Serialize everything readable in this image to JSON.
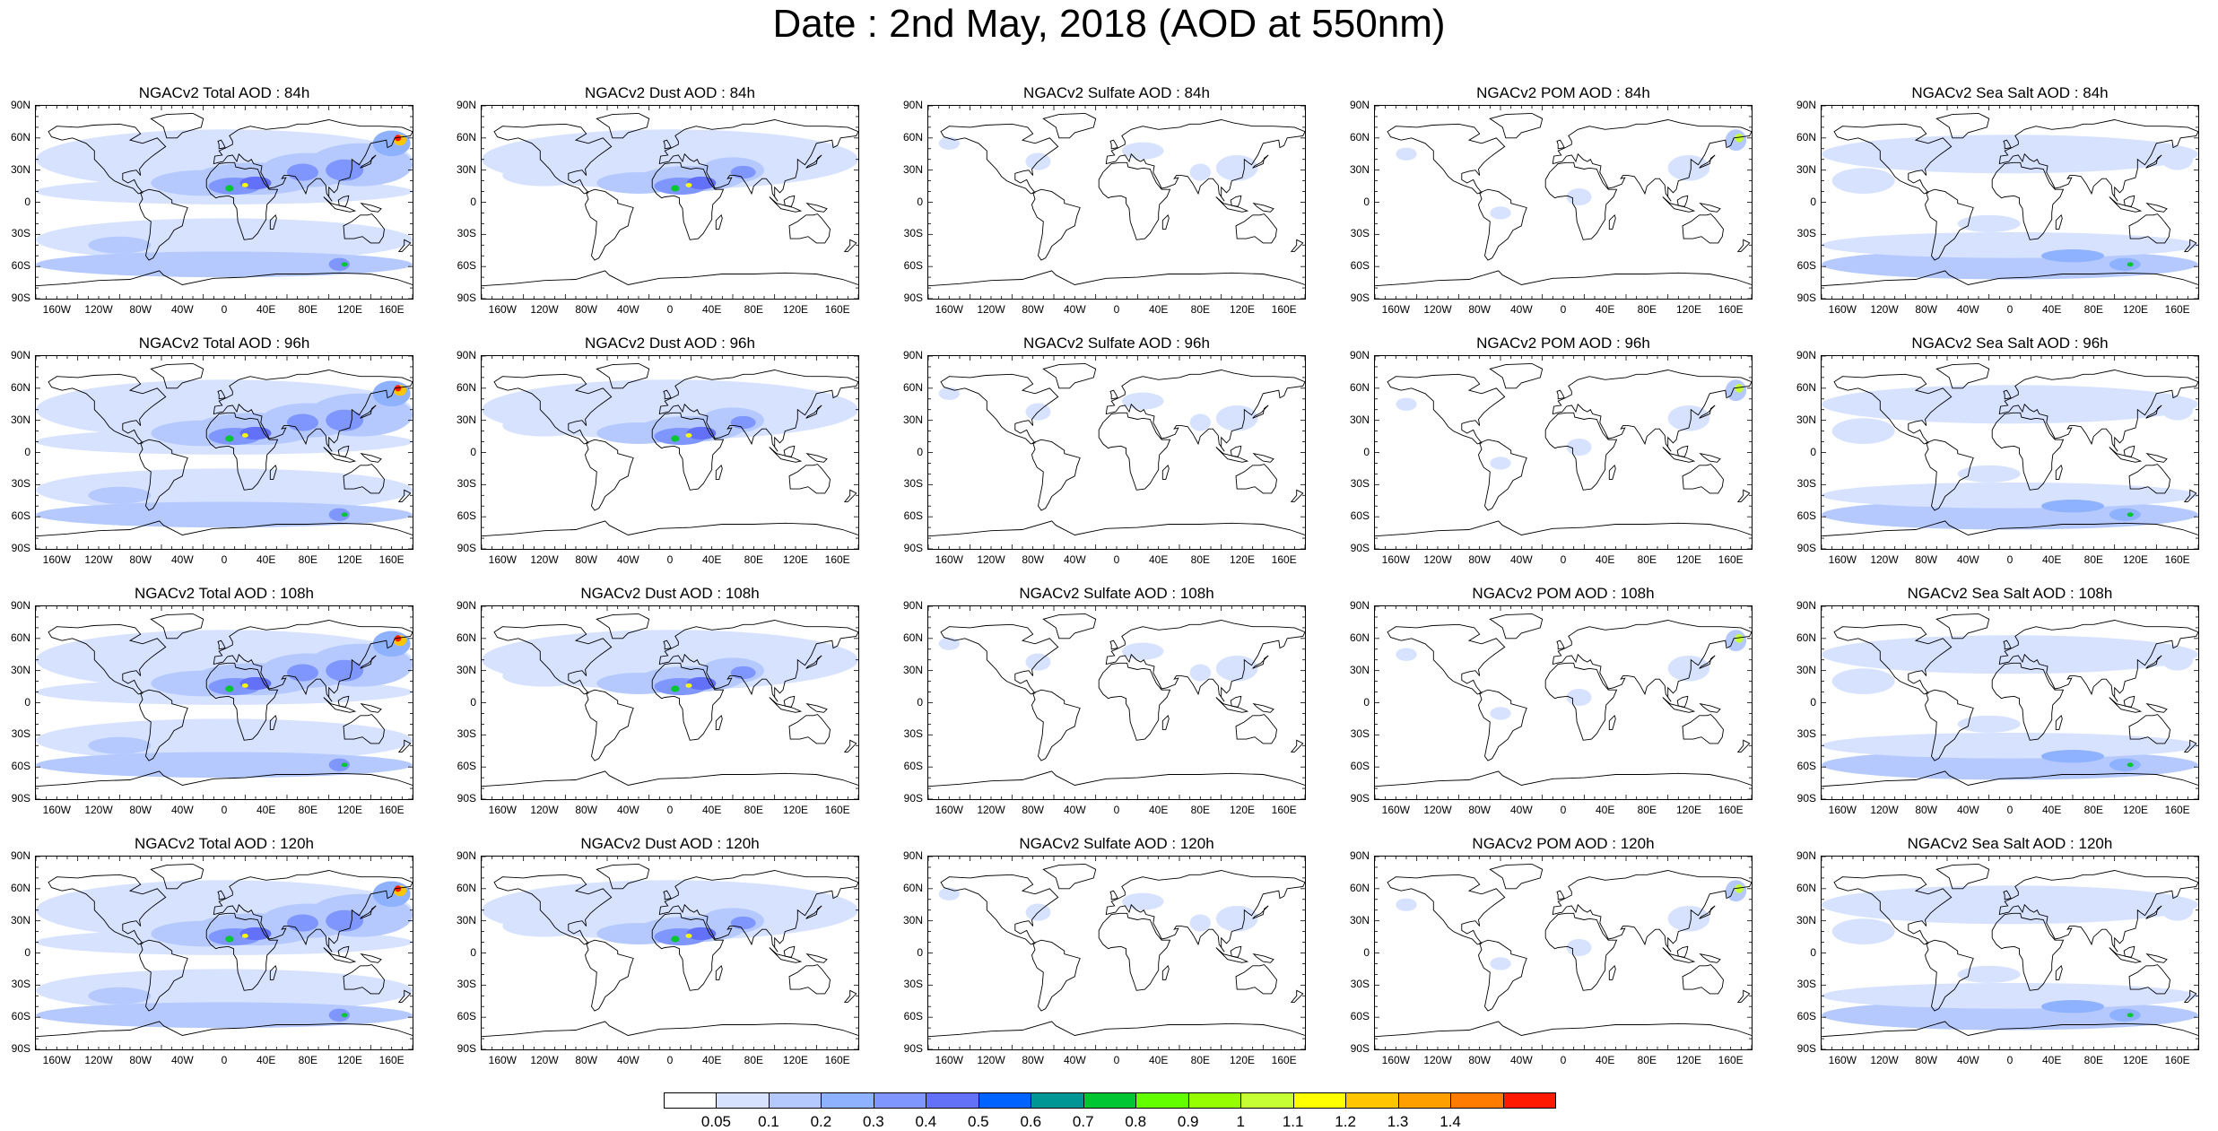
{
  "title": "Date : 2nd May, 2018 (AOD at 550nm)",
  "lat_labels": [
    "90N",
    "60N",
    "30N",
    "0",
    "30S",
    "60S",
    "90S"
  ],
  "lon_labels": [
    "160W",
    "120W",
    "80W",
    "40W",
    "0",
    "40E",
    "80E",
    "120E",
    "160E"
  ],
  "panels": [
    {
      "title": "NGACv2 Total AOD : 84h",
      "species": "total",
      "hour": 84
    },
    {
      "title": "NGACv2 Dust AOD : 84h",
      "species": "dust",
      "hour": 84
    },
    {
      "title": "NGACv2 Sulfate AOD : 84h",
      "species": "sulfate",
      "hour": 84
    },
    {
      "title": "NGACv2 POM AOD : 84h",
      "species": "pom",
      "hour": 84
    },
    {
      "title": "NGACv2 Sea Salt AOD : 84h",
      "species": "seasalt",
      "hour": 84
    },
    {
      "title": "NGACv2 Total AOD : 96h",
      "species": "total",
      "hour": 96
    },
    {
      "title": "NGACv2 Dust AOD : 96h",
      "species": "dust",
      "hour": 96
    },
    {
      "title": "NGACv2 Sulfate AOD : 96h",
      "species": "sulfate",
      "hour": 96
    },
    {
      "title": "NGACv2 POM AOD : 96h",
      "species": "pom",
      "hour": 96
    },
    {
      "title": "NGACv2 Sea Salt AOD : 96h",
      "species": "seasalt",
      "hour": 96
    },
    {
      "title": "NGACv2 Total AOD : 108h",
      "species": "total",
      "hour": 108
    },
    {
      "title": "NGACv2 Dust AOD : 108h",
      "species": "dust",
      "hour": 108
    },
    {
      "title": "NGACv2 Sulfate AOD : 108h",
      "species": "sulfate",
      "hour": 108
    },
    {
      "title": "NGACv2 POM AOD : 108h",
      "species": "pom",
      "hour": 108
    },
    {
      "title": "NGACv2 Sea Salt AOD : 108h",
      "species": "seasalt",
      "hour": 108
    },
    {
      "title": "NGACv2 Total AOD : 120h",
      "species": "total",
      "hour": 120
    },
    {
      "title": "NGACv2 Dust AOD : 120h",
      "species": "dust",
      "hour": 120
    },
    {
      "title": "NGACv2 Sulfate AOD : 120h",
      "species": "sulfate",
      "hour": 120
    },
    {
      "title": "NGACv2 POM AOD : 120h",
      "species": "pom",
      "hour": 120
    },
    {
      "title": "NGACv2 Sea Salt  AOD : 120h",
      "species": "seasalt",
      "hour": 120
    }
  ],
  "colorbar": {
    "labels": [
      "0.05",
      "0.1",
      "0.2",
      "0.3",
      "0.4",
      "0.5",
      "0.6",
      "0.7",
      "0.8",
      "0.9",
      "1",
      "1.1",
      "1.2",
      "1.3",
      "1.4"
    ],
    "colors": [
      "#ffffff",
      "#d6e2ff",
      "#b5c9ff",
      "#8eb2ff",
      "#7f96ff",
      "#6370f8",
      "#0063ff",
      "#009696",
      "#00c633",
      "#63ff00",
      "#96ff00",
      "#c6ff33",
      "#ffff00",
      "#ffc600",
      "#ffa000",
      "#ff7c00",
      "#ff1900"
    ]
  }
}
